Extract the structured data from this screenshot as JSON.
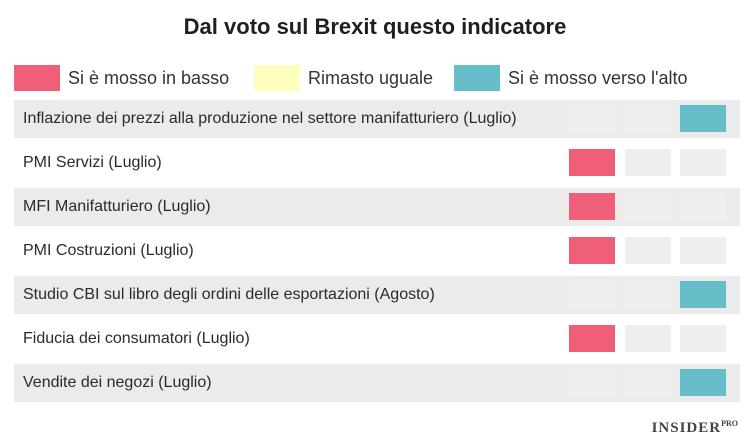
{
  "chart_data": {
    "type": "table",
    "title": "Dal voto sul Brexit questo indicatore",
    "legend": [
      {
        "key": "down",
        "label": "Si è mosso in basso",
        "color": "#ef5f78"
      },
      {
        "key": "same",
        "label": "Rimasto uguale",
        "color": "#fdfdbe"
      },
      {
        "key": "up",
        "label": "Si è mosso verso l'alto",
        "color": "#67bec8"
      }
    ],
    "empty_color": "#efefed",
    "rows": [
      {
        "label": "Inflazione dei prezzi alla produzione nel settore manifatturiero (Luglio)",
        "value": "up"
      },
      {
        "label": "PMI Servizi (Luglio)",
        "value": "down"
      },
      {
        "label": "MFI Manifatturiero (Luglio)",
        "value": "down"
      },
      {
        "label": "PMI Costruzioni (Luglio)",
        "value": "down"
      },
      {
        "label": "Studio CBI sul libro degli ordini delle esportazioni (Agosto)",
        "value": "up"
      },
      {
        "label": "Fiducia dei consumatori (Luglio)",
        "value": "down"
      },
      {
        "label": "Vendite dei negozi (Luglio)",
        "value": "up"
      }
    ]
  },
  "footer": {
    "brand": "INSIDER",
    "brand_suffix": "PRO"
  }
}
